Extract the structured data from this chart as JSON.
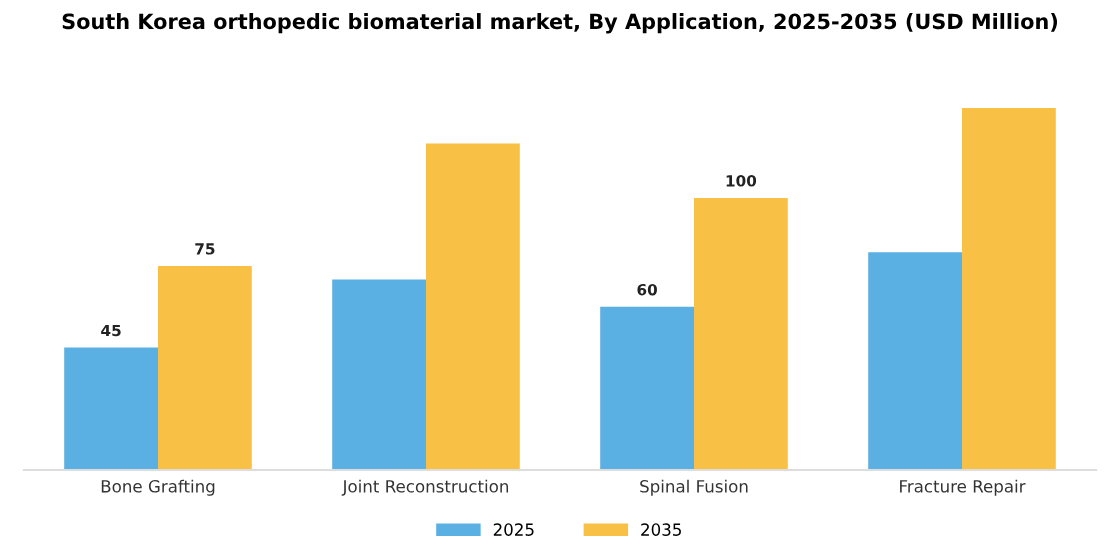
{
  "chart_data": {
    "type": "bar",
    "title": "South Korea orthopedic biomaterial market, By Application, 2025-2035 (USD Million)",
    "categories": [
      "Bone Grafting",
      "Joint Reconstruction",
      "Spinal Fusion",
      "Fracture Repair"
    ],
    "series": [
      {
        "name": "2025",
        "color": "#5aafe3",
        "values": [
          45,
          70,
          60,
          80
        ],
        "value_labels": [
          "45",
          null,
          "60",
          null
        ]
      },
      {
        "name": "2035",
        "color": "#f8c044",
        "values": [
          75,
          120,
          100,
          133
        ],
        "value_labels": [
          "75",
          null,
          "100",
          null
        ]
      }
    ],
    "tick_labels": "x",
    "grid": false,
    "legend": "bottom"
  }
}
